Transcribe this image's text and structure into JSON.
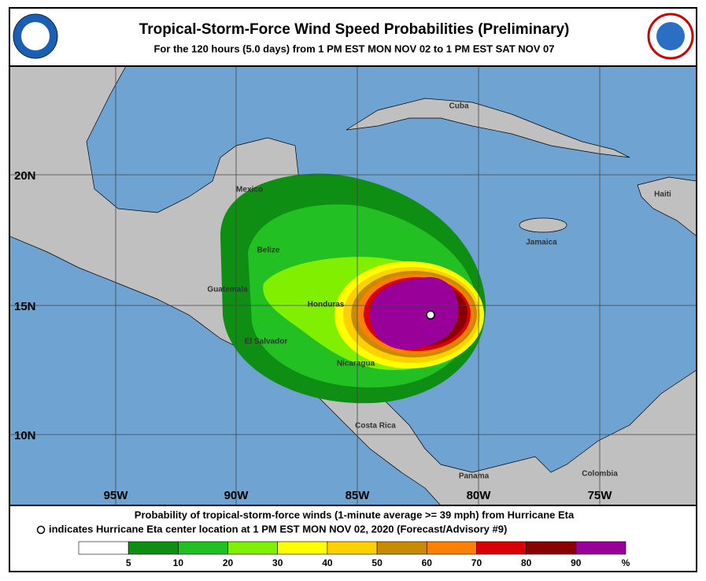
{
  "header": {
    "title": "Tropical-Storm-Force Wind Speed Probabilities (Preliminary)",
    "subtitle": "For the 120 hours (5.0 days) from 1 PM EST MON NOV 02 to 1 PM EST SAT NOV 07"
  },
  "map": {
    "places": [
      "Cuba",
      "Mexico",
      "Belize",
      "Guatemala",
      "Honduras",
      "El Salvador",
      "Nicaragua",
      "Costa Rica",
      "Panama",
      "Colombia",
      "Jamaica",
      "Haiti"
    ],
    "lat_labels": [
      "20N",
      "15N",
      "10N"
    ],
    "lon_labels": [
      "95W",
      "90W",
      "85W",
      "80W",
      "75W"
    ]
  },
  "footer": {
    "line1": "Probability of tropical-storm-force winds (1-minute average >= 39 mph) from Hurricane Eta",
    "line2": "indicates Hurricane Eta center location at 1 PM EST MON NOV 02, 2020 (Forecast/Advisory #9)"
  },
  "legend": {
    "colors": [
      "#ffffff",
      "#0e8e12",
      "#22c022",
      "#80f000",
      "#ffff00",
      "#ffd000",
      "#c88a00",
      "#ff8000",
      "#d80000",
      "#880000",
      "#990099"
    ],
    "labels": [
      5,
      10,
      20,
      30,
      40,
      50,
      60,
      70,
      80,
      90
    ],
    "unit": "%"
  }
}
